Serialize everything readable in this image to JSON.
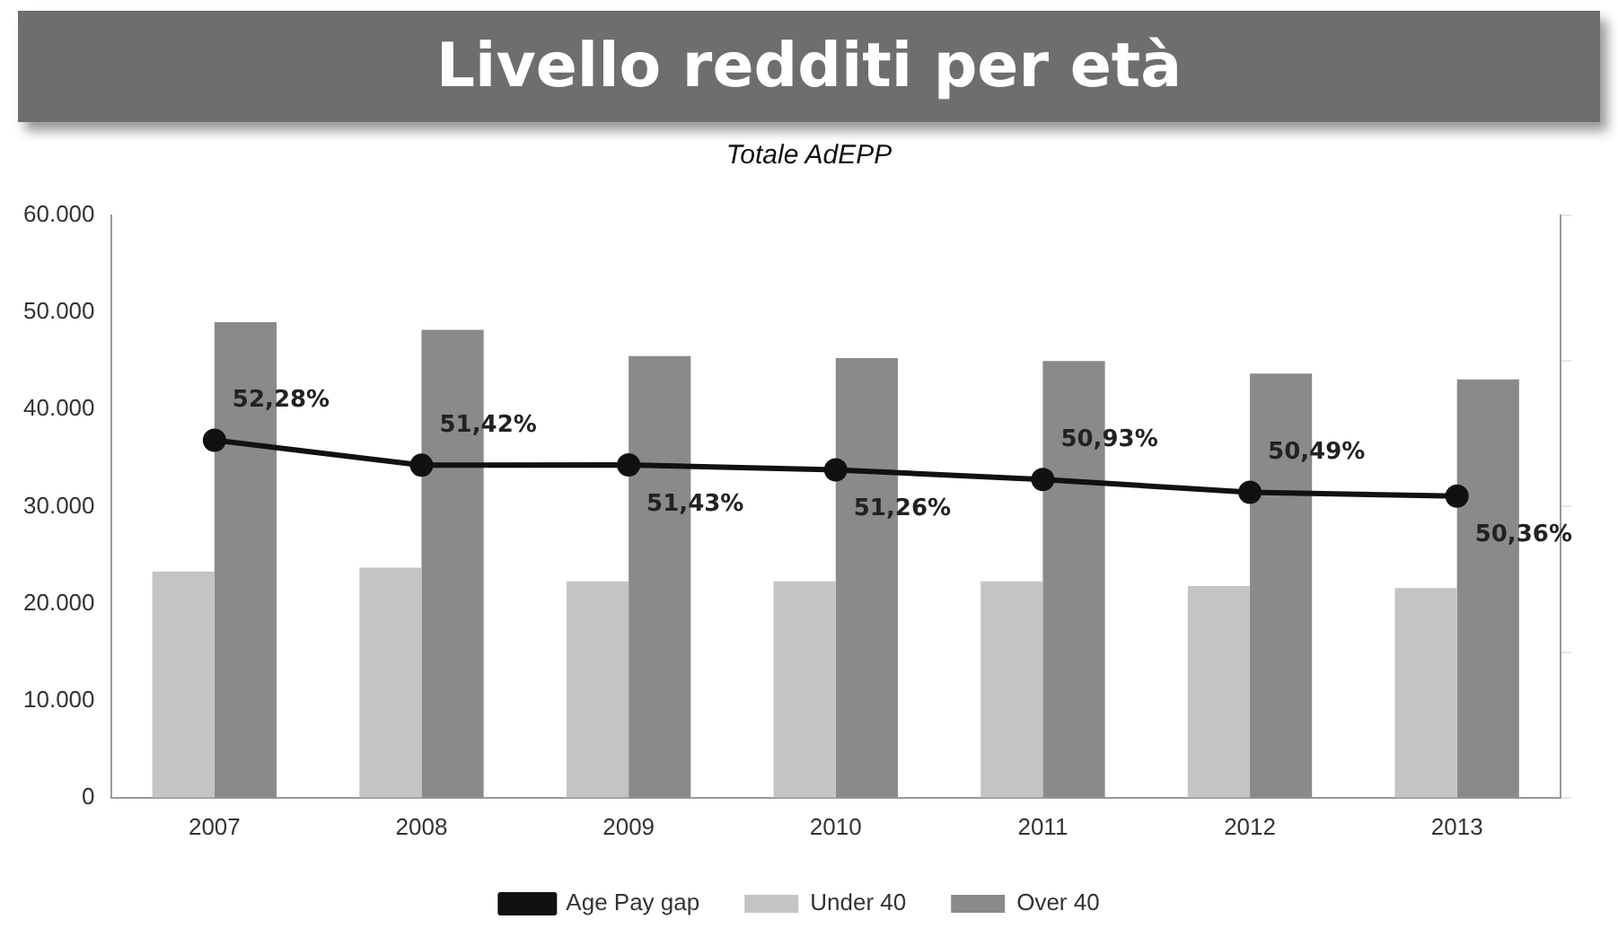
{
  "chart_data": {
    "type": "bar",
    "title": "Livello redditi per età",
    "subtitle": "Totale AdEPP",
    "categories": [
      "2007",
      "2008",
      "2009",
      "2010",
      "2011",
      "2012",
      "2013"
    ],
    "series": [
      {
        "name": "Under 40",
        "color": "#c4c4c4",
        "values": [
          23300,
          23700,
          22300,
          22300,
          22300,
          21800,
          21600
        ]
      },
      {
        "name": "Over 40",
        "color": "#8a8a8a",
        "values": [
          49000,
          48200,
          45500,
          45300,
          45000,
          43700,
          43100
        ]
      },
      {
        "name": "Age Pay gap",
        "type": "line",
        "axis": "y2",
        "color": "#111111",
        "marker": "circle",
        "values": [
          52.28,
          51.42,
          51.43,
          51.26,
          50.93,
          50.49,
          50.36
        ],
        "value_labels": [
          "52,28%",
          "51,42%",
          "51,43%",
          "51,26%",
          "50,93%",
          "50,49%",
          "50,36%"
        ]
      }
    ],
    "ylim": [
      0,
      60000
    ],
    "yticks": [
      {
        "value": 0,
        "label": "0"
      },
      {
        "value": 10000,
        "label": "10.000"
      },
      {
        "value": 20000,
        "label": "20.000"
      },
      {
        "value": 30000,
        "label": "30.000"
      },
      {
        "value": 40000,
        "label": "40.000"
      },
      {
        "value": 50000,
        "label": "50.000"
      },
      {
        "value": 60000,
        "label": "60.000"
      }
    ],
    "y2lim": [
      40,
      60
    ],
    "y2ticks": [
      {
        "value": 40,
        "label": null
      },
      {
        "value": 45,
        "label": null
      },
      {
        "value": 50,
        "label": null
      },
      {
        "value": 55,
        "label": null
      },
      {
        "value": 60,
        "label": null
      }
    ],
    "grid": false,
    "legend": "bottom"
  }
}
